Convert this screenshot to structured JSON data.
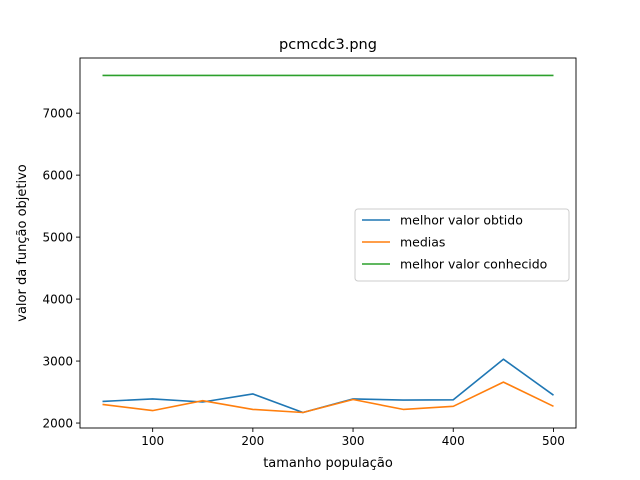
{
  "chart_data": {
    "type": "line",
    "title": "pcmcdc3.png",
    "xlabel": "tamanho população",
    "ylabel": "valor da função objetivo",
    "x": [
      50,
      100,
      150,
      200,
      250,
      300,
      350,
      400,
      450,
      500
    ],
    "xticks": [
      100,
      200,
      300,
      400,
      500
    ],
    "yticks": [
      2000,
      3000,
      4000,
      5000,
      6000,
      7000
    ],
    "xlim": [
      27.5,
      522.5
    ],
    "ylim": [
      1920,
      7890
    ],
    "grid": false,
    "legend_position": "center-right",
    "series": [
      {
        "name": "melhor valor obtido",
        "color": "#1f77b4",
        "values": [
          2350,
          2390,
          2340,
          2470,
          2170,
          2390,
          2370,
          2375,
          3030,
          2450
        ]
      },
      {
        "name": "medias",
        "color": "#ff7f0e",
        "values": [
          2300,
          2200,
          2360,
          2220,
          2170,
          2380,
          2220,
          2270,
          2660,
          2270
        ]
      },
      {
        "name": "melhor valor conhecido",
        "color": "#2ca02c",
        "values": [
          7610,
          7610,
          7610,
          7610,
          7610,
          7610,
          7610,
          7610,
          7610,
          7610
        ]
      }
    ]
  }
}
